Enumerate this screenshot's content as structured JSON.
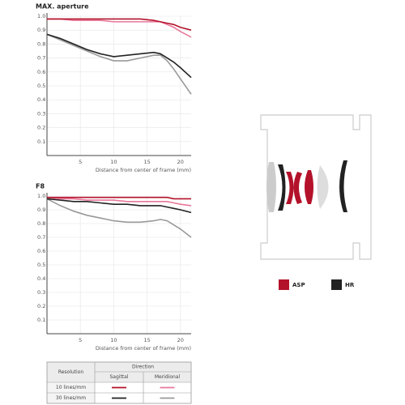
{
  "chart_data": [
    {
      "type": "line",
      "title": "MAX. aperture",
      "xlabel": "Distance from center of frame (mm)",
      "x": [
        0,
        2,
        4,
        6,
        8,
        10,
        12,
        14,
        16,
        17,
        18,
        19,
        20,
        21.6
      ],
      "xlim": [
        0,
        21.6
      ],
      "xticks": [
        5,
        10,
        15,
        20
      ],
      "ylim": [
        0,
        1
      ],
      "yticks": [
        {
          "value": 1,
          "label": "1.0"
        },
        0.9,
        0.8,
        0.7,
        0.6,
        0.5,
        0.4,
        0.3,
        0.2,
        0.1
      ],
      "grid": true,
      "series": [
        {
          "color": "#999999",
          "values": [
            0.87,
            0.83,
            0.79,
            0.75,
            0.71,
            0.68,
            0.68,
            0.7,
            0.72,
            0.72,
            0.68,
            0.62,
            0.55,
            0.44
          ]
        },
        {
          "color": "#222222",
          "values": [
            0.87,
            0.84,
            0.8,
            0.76,
            0.73,
            0.71,
            0.72,
            0.73,
            0.74,
            0.73,
            0.7,
            0.67,
            0.63,
            0.56
          ]
        },
        {
          "color": "#e8789a",
          "values": [
            0.98,
            0.98,
            0.97,
            0.97,
            0.97,
            0.96,
            0.96,
            0.96,
            0.96,
            0.96,
            0.94,
            0.92,
            0.89,
            0.85
          ]
        },
        {
          "color": "#b3122a",
          "values": [
            0.98,
            0.98,
            0.98,
            0.98,
            0.98,
            0.98,
            0.98,
            0.98,
            0.97,
            0.96,
            0.95,
            0.94,
            0.92,
            0.9
          ]
        }
      ]
    },
    {
      "type": "line",
      "title": "F8",
      "xlabel": "Distance from center of frame (mm)",
      "x": [
        0,
        2,
        4,
        6,
        8,
        10,
        12,
        14,
        16,
        17,
        18,
        19,
        20,
        21.6
      ],
      "xlim": [
        0,
        21.6
      ],
      "xticks": [
        5,
        10,
        15,
        20
      ],
      "ylim": [
        0,
        1
      ],
      "yticks": [
        {
          "value": 1,
          "label": "1.0"
        },
        0.9,
        0.8,
        0.7,
        0.6,
        0.5,
        0.4,
        0.3,
        0.2,
        0.1
      ],
      "grid": true,
      "series": [
        {
          "color": "#999999",
          "values": [
            0.98,
            0.93,
            0.89,
            0.86,
            0.84,
            0.82,
            0.81,
            0.81,
            0.82,
            0.83,
            0.82,
            0.79,
            0.76,
            0.7
          ]
        },
        {
          "color": "#222222",
          "values": [
            0.98,
            0.97,
            0.96,
            0.96,
            0.95,
            0.94,
            0.94,
            0.93,
            0.93,
            0.93,
            0.92,
            0.91,
            0.9,
            0.88
          ]
        },
        {
          "color": "#e8789a",
          "values": [
            0.99,
            0.98,
            0.98,
            0.97,
            0.97,
            0.97,
            0.96,
            0.96,
            0.96,
            0.96,
            0.96,
            0.95,
            0.94,
            0.93
          ]
        },
        {
          "color": "#b3122a",
          "values": [
            0.99,
            0.99,
            0.99,
            0.99,
            0.99,
            0.99,
            0.99,
            0.99,
            0.99,
            0.99,
            0.99,
            0.98,
            0.98,
            0.98
          ]
        }
      ]
    }
  ],
  "legend_table": {
    "resolution_header": "Resolution",
    "direction_header": "Direction",
    "directions": [
      "Sagittal",
      "Meridional"
    ],
    "resolutions": [
      "10 lines/mm",
      "30 lines/mm"
    ],
    "colors": [
      [
        "#b3122a",
        "#e8789a"
      ],
      [
        "#222222",
        "#999999"
      ]
    ]
  },
  "lens_legend": [
    {
      "label": "ASP",
      "color": "#b3122a"
    },
    {
      "label": "HR",
      "color": "#222222"
    }
  ]
}
